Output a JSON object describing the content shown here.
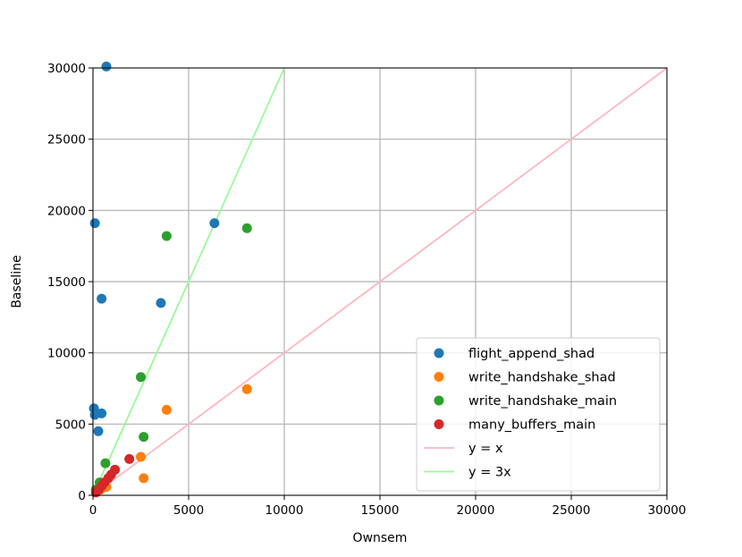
{
  "chart_data": {
    "type": "scatter",
    "xlabel": "Ownsem",
    "ylabel": "Baseline",
    "xlim": [
      0,
      30000
    ],
    "ylim": [
      0,
      30000
    ],
    "xticks": [
      0,
      5000,
      10000,
      15000,
      20000,
      25000,
      30000
    ],
    "yticks": [
      0,
      5000,
      10000,
      15000,
      20000,
      25000,
      30000
    ],
    "grid": true,
    "legend_position": "lower-right",
    "series": [
      {
        "name": "flight_append_shad",
        "color": "#1f77b4",
        "points": [
          [
            700,
            30100
          ],
          [
            100,
            19100
          ],
          [
            6350,
            19100
          ],
          [
            450,
            13800
          ],
          [
            3550,
            13500
          ],
          [
            50,
            6100
          ],
          [
            450,
            5750
          ],
          [
            100,
            5650
          ],
          [
            280,
            4500
          ]
        ]
      },
      {
        "name": "write_handshake_shad",
        "color": "#ff7f0e",
        "points": [
          [
            8050,
            7450
          ],
          [
            3850,
            6000
          ],
          [
            2500,
            2700
          ],
          [
            2650,
            1200
          ],
          [
            700,
            600
          ],
          [
            400,
            400
          ]
        ]
      },
      {
        "name": "write_handshake_main",
        "color": "#2ca02c",
        "points": [
          [
            3850,
            18200
          ],
          [
            8050,
            18750
          ],
          [
            2500,
            8300
          ],
          [
            2650,
            4100
          ],
          [
            650,
            2250
          ],
          [
            350,
            900
          ],
          [
            150,
            400
          ]
        ]
      },
      {
        "name": "many_buffers_main",
        "color": "#d62728",
        "points": [
          [
            1900,
            2550
          ],
          [
            1150,
            1800
          ],
          [
            950,
            1450
          ],
          [
            800,
            1200
          ],
          [
            600,
            900
          ],
          [
            450,
            650
          ],
          [
            300,
            400
          ],
          [
            150,
            200
          ]
        ]
      }
    ],
    "lines": [
      {
        "name": "y = x",
        "color": "#ffb6c1",
        "slope": 1,
        "x_range": [
          0,
          30000
        ]
      },
      {
        "name": "y = 3x",
        "color": "#98fb98",
        "slope": 3,
        "x_range": [
          0,
          10000
        ]
      }
    ]
  }
}
